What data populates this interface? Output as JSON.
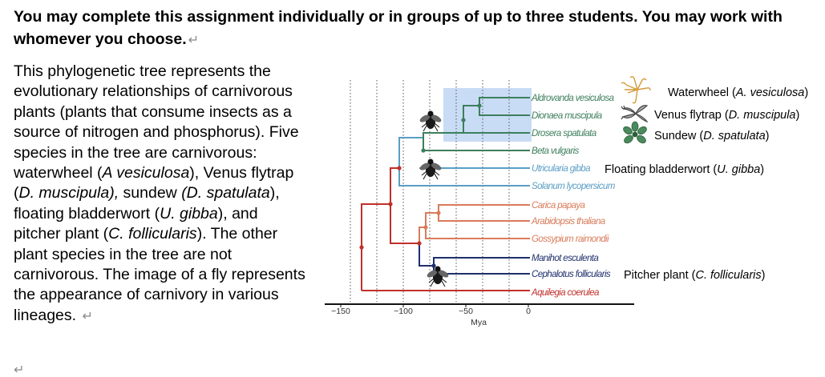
{
  "heading": {
    "text": "You may complete this assignment individually or in groups of up to three students. You may work with whomever you choose.",
    "mark": "↵"
  },
  "paragraph": {
    "t1": "This phylogenetic tree represents the evolutionary relationships of carnivorous plants (plants that consume insects as a source of nitrogen and phosphorus). Five species in the tree are carnivorous: waterwheel (",
    "i1": "A vesiculosa",
    "t2": "), Venus flytrap (",
    "i2": "D. muscipula),",
    "t3": " sundew ",
    "i3": "(D. spatulata",
    "t4": "), floating bladderwort (",
    "i4": "U. gibba",
    "t5": "), and pitcher plant (",
    "i5": "C. follicularis",
    "t6": "). The other plant species in the tree are not carnivorous. The image of a fly represents the appearance of carnivory in various lineages. ",
    "mark": "↵",
    "last_mark": "↵"
  },
  "figure": {
    "axis_title": "Mya",
    "axis_ticks": [
      "−150",
      "−100",
      "−50",
      "0"
    ],
    "species": [
      "Aldrovanda vesiculosa",
      "Dionaea muscipula",
      "Drosera spatulata",
      "Beta vulgaris",
      "Utricularia gibba",
      "Solanum lycopersicum",
      "Carica papaya",
      "Arabidopsis thaliana",
      "Gossypium raimondii",
      "Manihot esculenta",
      "Cephalotus follicularis",
      "Aquilegia coerulea"
    ],
    "species_colors": [
      "#3d7f5c",
      "#3d7f5c",
      "#3d7f5c",
      "#3d7f5c",
      "#5a9ec4",
      "#5a9ec4",
      "#d97b5a",
      "#d97b5a",
      "#d97b5a",
      "#1f2f6b",
      "#1f2f6b",
      "#c0302b"
    ],
    "common_names": {
      "waterwheel_prefix": "Waterwheel (",
      "waterwheel_italic": "A. vesiculosa",
      "waterwheel_suffix": ")",
      "flytrap_prefix": "Venus flytrap (",
      "flytrap_italic": "D. muscipula",
      "flytrap_suffix": ")",
      "sundew_prefix": "Sundew (",
      "sundew_italic": "D. spatulata",
      "sundew_suffix": ")",
      "bladderwort_prefix": "Floating bladderwort (",
      "bladderwort_italic": "U. gibba",
      "bladderwort_suffix": ")",
      "pitcher_prefix": "Pitcher plant (",
      "pitcher_italic": "C. follicularis",
      "pitcher_suffix": ")"
    },
    "icons": [
      "fly-icon",
      "fly-icon",
      "fly-icon",
      "waterwheel-plant-icon",
      "venus-flytrap-icon",
      "sundew-icon"
    ],
    "colors": {
      "highlight": "#c9dcf5",
      "green_clade": "#3d7f5c",
      "blue_clade": "#5a9ec4",
      "orange_clade": "#d97b5a",
      "navy_clade": "#1f2f6b",
      "red_root": "#c0302b"
    }
  }
}
